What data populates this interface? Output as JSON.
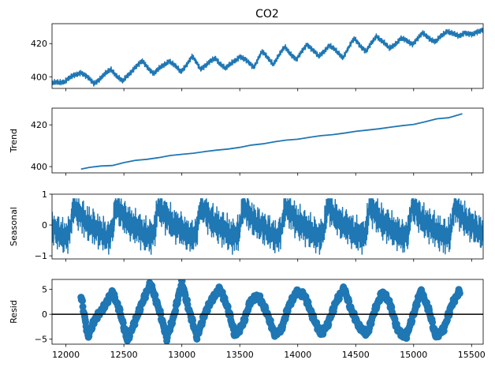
{
  "figure_title": "CO2",
  "chart_data": [
    {
      "type": "line",
      "title": "CO2",
      "ylabel": "",
      "xlim": [
        11880,
        15600
      ],
      "ylim": [
        393,
        432
      ],
      "yticks": [
        400,
        420
      ],
      "xticks": [
        12000,
        12500,
        13000,
        13500,
        14000,
        14500,
        15000,
        15500
      ],
      "show_xtick_labels": false,
      "series": [
        {
          "color": "#1f77b4",
          "x": [
            11880,
            11990,
            12130,
            12240,
            12390,
            12490,
            12590,
            12660,
            12760,
            12890,
            12990,
            13090,
            13160,
            13290,
            13380,
            13500,
            13620,
            13690,
            13790,
            13890,
            13990,
            14080,
            14180,
            14270,
            14390,
            14490,
            14590,
            14680,
            14790,
            14890,
            14990,
            15080,
            15190,
            15290,
            15390,
            15440,
            15510,
            15600
          ],
          "values": [
            396,
            397.5,
            403,
            396,
            404.5,
            397,
            405.5,
            409,
            402,
            410,
            403,
            412,
            405,
            411,
            405,
            412.5,
            406,
            415,
            408,
            418,
            410,
            420,
            412,
            419,
            412,
            423,
            415,
            425,
            417,
            423,
            420,
            426,
            421,
            428,
            424,
            427,
            425,
            429
          ]
        }
      ]
    },
    {
      "type": "line",
      "ylabel": "Trend",
      "xlim": [
        11880,
        15600
      ],
      "ylim": [
        397,
        428
      ],
      "yticks": [
        400,
        420
      ],
      "xticks": [
        12000,
        12500,
        13000,
        13500,
        14000,
        14500,
        15000,
        15500
      ],
      "show_xtick_labels": false,
      "series": [
        {
          "color": "#1f77b4",
          "x": [
            12130,
            12200,
            12300,
            12400,
            12500,
            12600,
            12700,
            12800,
            12900,
            13000,
            13100,
            13200,
            13300,
            13400,
            13500,
            13600,
            13700,
            13800,
            13900,
            14000,
            14100,
            14200,
            14300,
            14400,
            14500,
            14600,
            14700,
            14800,
            14900,
            15000,
            15100,
            15200,
            15300,
            15420
          ],
          "values": [
            398.8,
            399.6,
            400.3,
            400.5,
            401.9,
            403.0,
            403.5,
            404.3,
            405.3,
            405.9,
            406.4,
            407.2,
            407.9,
            408.4,
            409.2,
            410.3,
            410.9,
            411.9,
            412.7,
            413.1,
            414.0,
            414.8,
            415.3,
            416.0,
            416.9,
            417.5,
            418.1,
            418.9,
            419.6,
            420.2,
            421.5,
            422.9,
            423.4,
            425.3
          ]
        }
      ]
    },
    {
      "type": "line",
      "ylabel": "Seasonal",
      "xlim": [
        11880,
        15600
      ],
      "ylim": [
        -1.1,
        1.0
      ],
      "yticks": [
        -1,
        0,
        1
      ],
      "xticks": [
        12000,
        12500,
        13000,
        13500,
        14000,
        14500,
        15000,
        15500
      ],
      "show_xtick_labels": false,
      "period": 365,
      "series": [
        {
          "color": "#1f77b4",
          "phase": [
            0,
            0.05,
            0.1,
            0.15,
            0.2,
            0.25,
            0.3,
            0.35,
            0.4,
            0.45,
            0.5,
            0.55,
            0.6,
            0.65,
            0.7,
            0.75,
            0.8,
            0.85,
            0.9,
            0.95,
            1.0
          ],
          "values": [
            0.65,
            0.55,
            0.45,
            0.35,
            0.25,
            0.18,
            0.1,
            0.05,
            0.0,
            -0.05,
            -0.1,
            -0.15,
            -0.2,
            -0.25,
            -0.3,
            -0.35,
            -0.4,
            -0.35,
            -0.25,
            0.1,
            0.65
          ]
        }
      ]
    },
    {
      "type": "scatter",
      "ylabel": "Resid",
      "xlim": [
        11880,
        15600
      ],
      "ylim": [
        -6,
        7
      ],
      "yticks": [
        -5,
        0,
        5
      ],
      "xticks": [
        12000,
        12500,
        13000,
        13500,
        14000,
        14500,
        15000,
        15500
      ],
      "xtick_labels": [
        "12000",
        "12500",
        "13000",
        "13500",
        "14000",
        "14500",
        "15000",
        "15500"
      ],
      "show_xtick_labels": true,
      "zero_line": true,
      "series": [
        {
          "color": "#1f77b4",
          "x": [
            12130,
            12190,
            12250,
            12330,
            12400,
            12460,
            12530,
            12600,
            12670,
            12730,
            12810,
            12870,
            12930,
            13000,
            13060,
            13130,
            13200,
            13260,
            13330,
            13400,
            13460,
            13530,
            13590,
            13660,
            13730,
            13800,
            13860,
            13920,
            13990,
            14060,
            14130,
            14200,
            14260,
            14330,
            14400,
            14460,
            14530,
            14600,
            14660,
            14730,
            14790,
            14860,
            14930,
            15000,
            15060,
            15130,
            15190,
            15260,
            15330,
            15400
          ],
          "values": [
            3.8,
            -4.5,
            -1.0,
            1.5,
            4.5,
            1.0,
            -5.2,
            -1.2,
            3.0,
            6.2,
            0.5,
            -4.8,
            -0.5,
            6.5,
            1.0,
            -4.5,
            0.2,
            3.0,
            5.2,
            1.0,
            -4.4,
            -1.8,
            2.5,
            3.8,
            0.5,
            -4.0,
            -3.0,
            1.5,
            4.5,
            3.8,
            -0.5,
            -4.0,
            -2.0,
            2.5,
            5.2,
            1.0,
            -2.5,
            -4.0,
            0.5,
            4.5,
            2.5,
            -3.0,
            -4.8,
            0.0,
            4.8,
            1.0,
            -4.4,
            -3.0,
            2.0,
            4.8
          ]
        }
      ]
    }
  ]
}
